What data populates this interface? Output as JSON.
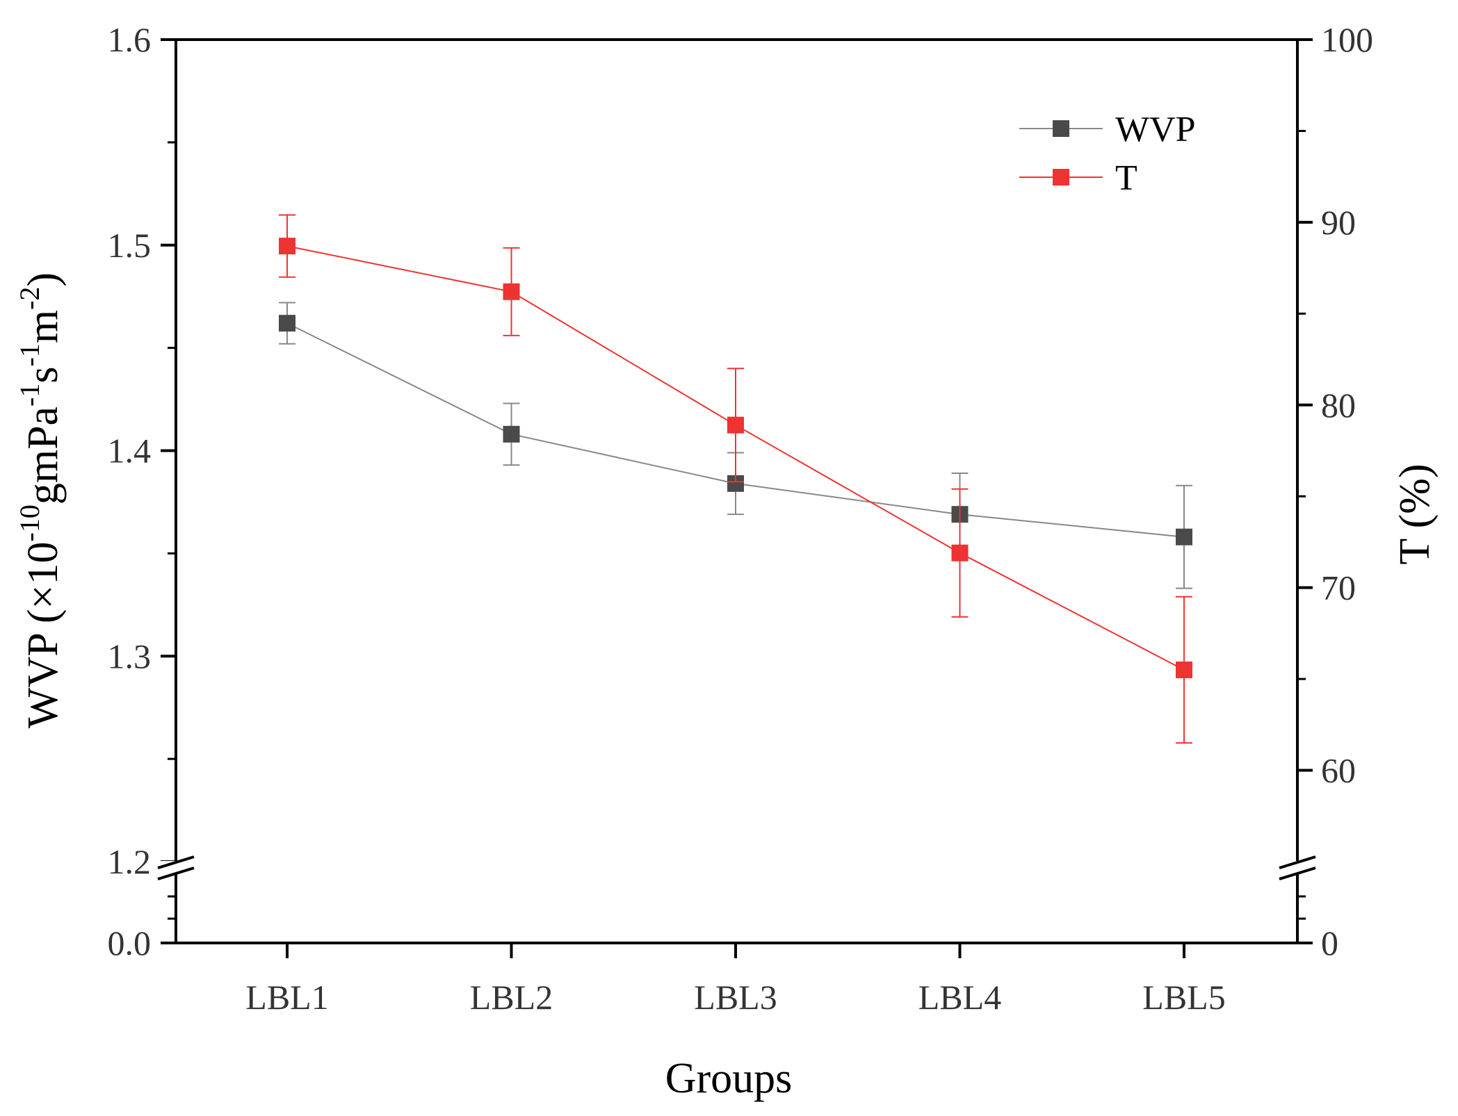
{
  "chart_data": {
    "type": "line",
    "categories": [
      "LBL1",
      "LBL2",
      "LBL3",
      "LBL4",
      "LBL5"
    ],
    "xlabel": "Groups",
    "ylabel_left": {
      "base": "WVP (×10",
      "sup1": "-10",
      "mid1": "gmPa",
      "sup2": "-1",
      "mid2": "s",
      "sup3": "-1",
      "mid3": "m",
      "sup4": "-2",
      "end": ")"
    },
    "ylabel_right": "T (%)",
    "left_axis": {
      "ticks": [
        "1.2",
        "1.3",
        "1.4",
        "1.5",
        "1.6"
      ],
      "break_low_tick": "0.0",
      "range": [
        1.2,
        1.6
      ]
    },
    "right_axis": {
      "ticks": [
        "60",
        "70",
        "80",
        "90",
        "100"
      ],
      "break_low_tick": "0",
      "range": [
        55,
        100
      ]
    },
    "series": [
      {
        "name": "WVP",
        "axis": "left",
        "color": "#4a4a4a",
        "line_color": "#888888",
        "values": [
          1.462,
          1.408,
          1.384,
          1.369,
          1.358
        ],
        "errors": [
          0.01,
          0.015,
          0.015,
          0.02,
          0.025
        ]
      },
      {
        "name": "T",
        "axis": "right",
        "color": "#ee3333",
        "line_color": "#ee3333",
        "values": [
          88.7,
          86.2,
          78.9,
          71.9,
          65.5
        ],
        "errors": [
          1.7,
          2.4,
          3.1,
          3.5,
          4.0
        ]
      }
    ],
    "legend": {
      "position": "top-right",
      "entries": [
        "WVP",
        "T"
      ]
    }
  }
}
